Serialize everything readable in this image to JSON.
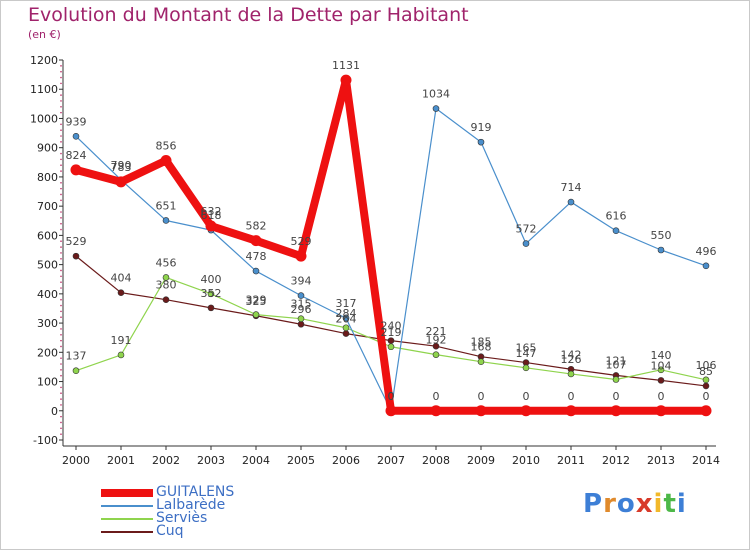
{
  "title": "Evolution du Montant de la Dette par Habitant",
  "subtitle": "(en €)",
  "logo": {
    "text": "Proxiti",
    "letter_colors": [
      "#3d7fd6",
      "#e08a2c",
      "#3d7fd6",
      "#d83a2a",
      "#f2b82a",
      "#4db848",
      "#3d7fd6"
    ]
  },
  "chart_data": {
    "type": "line",
    "x": [
      2000,
      2001,
      2002,
      2003,
      2004,
      2005,
      2006,
      2007,
      2008,
      2009,
      2010,
      2011,
      2012,
      2013,
      2014
    ],
    "ylim": [
      -100,
      1200
    ],
    "yticks": [
      -100,
      0,
      100,
      200,
      300,
      400,
      500,
      600,
      700,
      800,
      900,
      1000,
      1100,
      1200
    ],
    "grid": false,
    "legend_placement": "bottom-left",
    "series": [
      {
        "name": "GUITALENS",
        "color": "#ee1111",
        "values": [
          824,
          783,
          856,
          632,
          582,
          529,
          1131,
          0,
          0,
          0,
          0,
          0,
          0,
          0,
          0
        ]
      },
      {
        "name": "Lalbarède",
        "color": "#4a8fcc",
        "values": [
          939,
          790,
          651,
          618,
          478,
          394,
          317,
          0,
          1034,
          919,
          572,
          714,
          616,
          550,
          496
        ]
      },
      {
        "name": "Serviès",
        "color": "#8fd44d",
        "values": [
          137,
          191,
          456,
          400,
          329,
          315,
          284,
          219,
          192,
          168,
          147,
          126,
          107,
          140,
          106
        ]
      },
      {
        "name": "Cuq",
        "color": "#6b1b1b",
        "values": [
          529,
          404,
          380,
          352,
          325,
          296,
          264,
          240,
          221,
          185,
          165,
          142,
          121,
          104,
          85
        ]
      }
    ]
  }
}
